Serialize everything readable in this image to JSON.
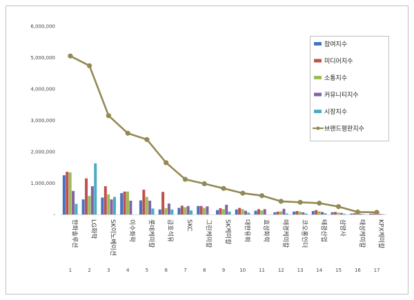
{
  "chart_data": {
    "type": "bar",
    "title": "",
    "xlabel": "",
    "ylabel": "",
    "ylim": [
      0,
      6000000
    ],
    "yticks": [
      "-",
      "1,000,000",
      "2,000,000",
      "3,000,000",
      "4,000,000",
      "5,000,000",
      "6,000,000"
    ],
    "grid": false,
    "legend_position": "top-right",
    "indices": [
      "1",
      "2",
      "3",
      "4",
      "5",
      "6",
      "7",
      "8",
      "9",
      "10",
      "11",
      "12",
      "13",
      "14",
      "15",
      "16",
      "17"
    ],
    "categories": [
      "한화솔루션",
      "LG화학",
      "SK이노베이션",
      "이수화학",
      "롯데케미칼",
      "금호석유",
      "SKC",
      "그린케미칼",
      "SK케미칼",
      "대한유화",
      "효성화학",
      "애경케미칼",
      "코오롱인더",
      "태광산업",
      "삼양사",
      "태성케미칼",
      "KPX케미칼"
    ],
    "series": [
      {
        "name": "참여지수",
        "color": "#4472C4",
        "kind": "bar",
        "values": [
          1250000,
          480000,
          540000,
          680000,
          450000,
          160000,
          210000,
          270000,
          140000,
          160000,
          120000,
          70000,
          90000,
          110000,
          70000,
          30000,
          25000
        ]
      },
      {
        "name": "미디어지수",
        "color": "#C0504D",
        "kind": "bar",
        "values": [
          1360000,
          1150000,
          900000,
          730000,
          790000,
          720000,
          280000,
          270000,
          200000,
          210000,
          170000,
          90000,
          110000,
          140000,
          80000,
          40000,
          30000
        ]
      },
      {
        "name": "소통지수",
        "color": "#9BBB59",
        "kind": "bar",
        "values": [
          1340000,
          590000,
          640000,
          730000,
          560000,
          200000,
          230000,
          210000,
          170000,
          170000,
          130000,
          100000,
          90000,
          100000,
          60000,
          30000,
          25000
        ]
      },
      {
        "name": "커뮤니티지수",
        "color": "#8064A2",
        "kind": "bar",
        "values": [
          750000,
          900000,
          480000,
          440000,
          440000,
          350000,
          270000,
          260000,
          310000,
          120000,
          170000,
          180000,
          70000,
          80000,
          50000,
          20000,
          20000
        ]
      },
      {
        "name": "시장지수",
        "color": "#4BACC6",
        "kind": "bar",
        "values": [
          340000,
          1630000,
          560000,
          0,
          190000,
          160000,
          130000,
          0,
          90000,
          60000,
          0,
          30000,
          30000,
          40000,
          20000,
          10000,
          10000
        ]
      },
      {
        "name": "브랜드평판지수",
        "color": "#938953",
        "kind": "line",
        "values": [
          5050000,
          4740000,
          3150000,
          2590000,
          2390000,
          1650000,
          1120000,
          980000,
          830000,
          680000,
          600000,
          420000,
          390000,
          360000,
          250000,
          80000,
          70000
        ]
      }
    ]
  }
}
